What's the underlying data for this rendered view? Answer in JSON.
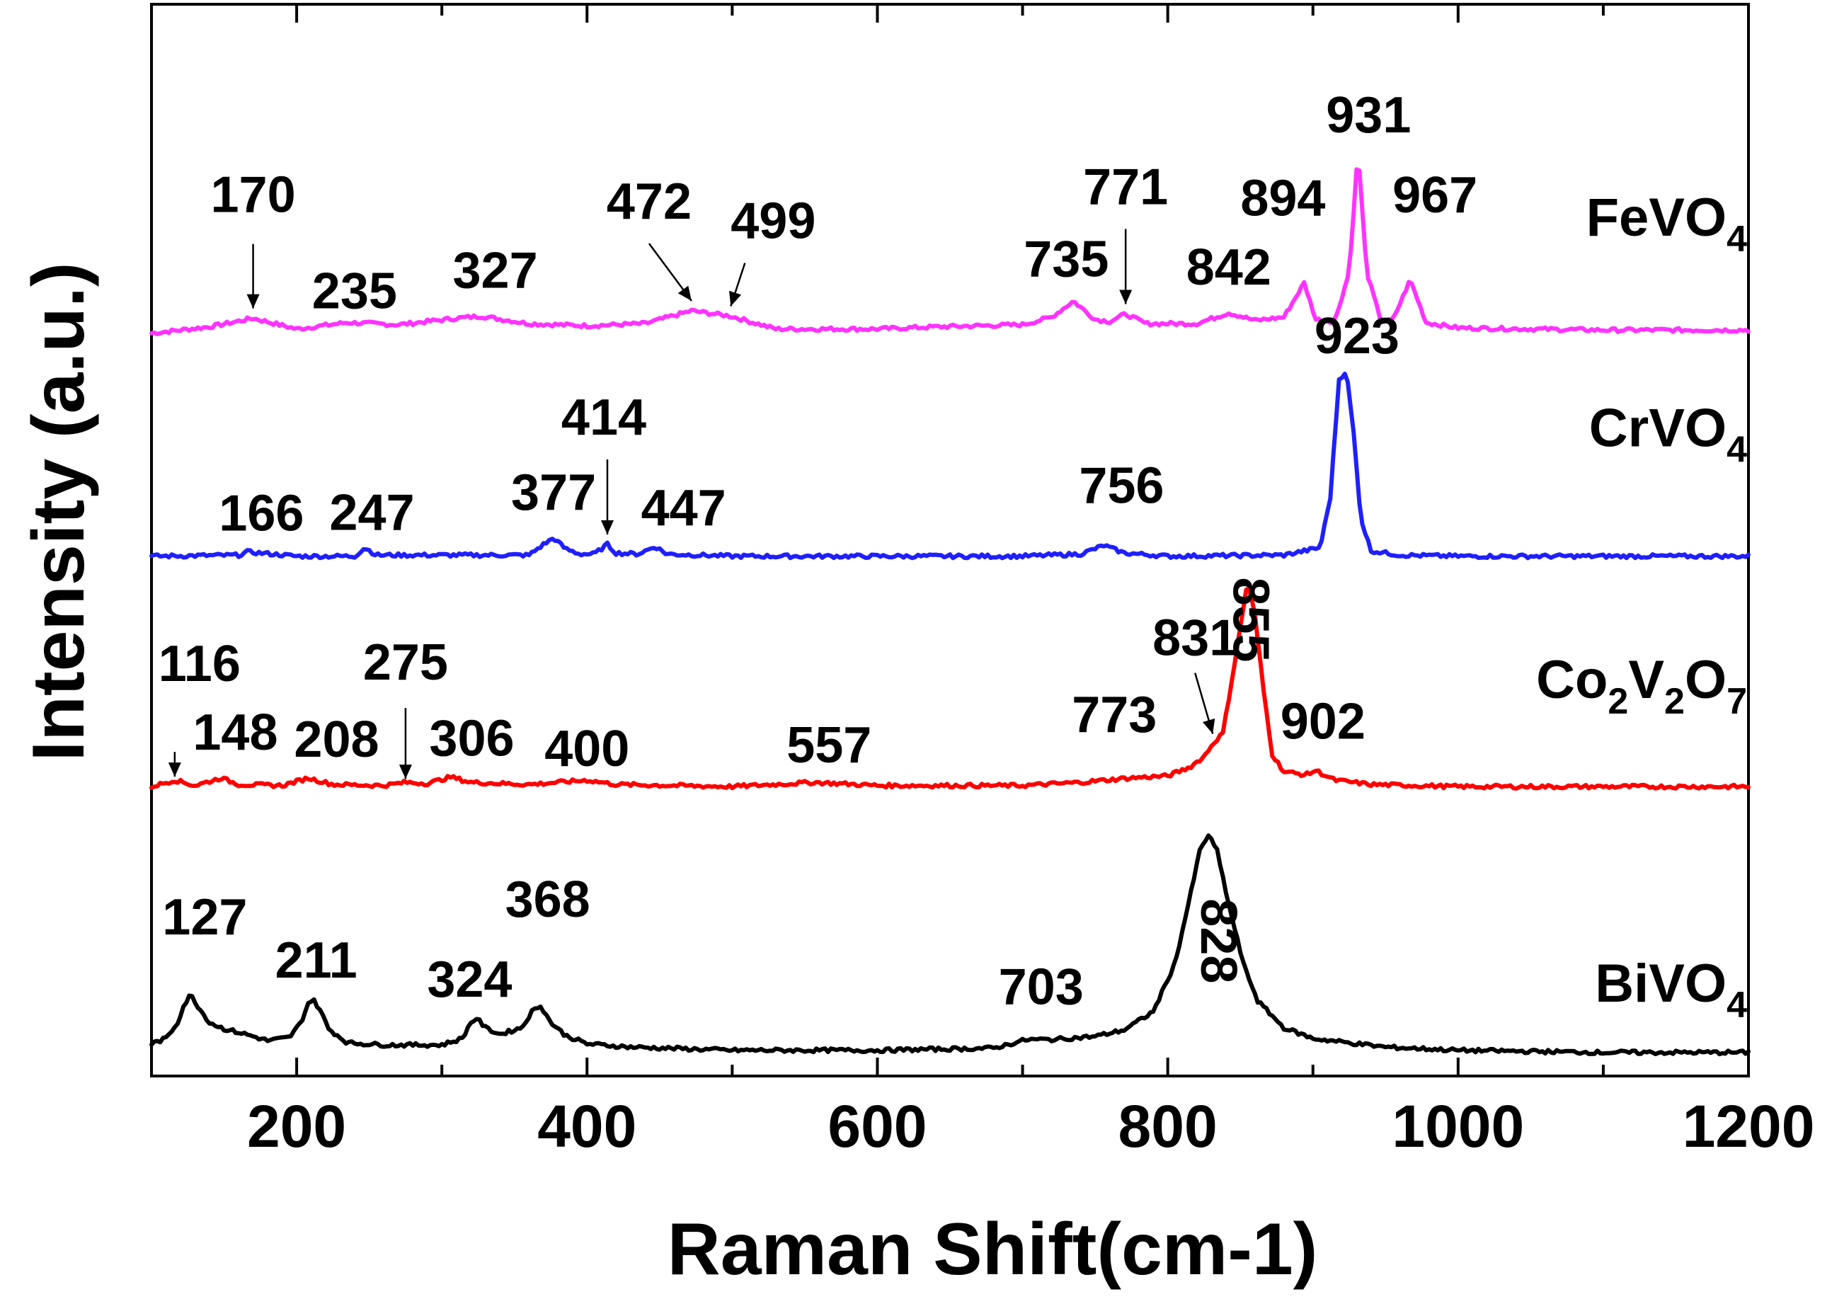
{
  "chart_data": {
    "type": "line",
    "xlabel": "Raman Shift(cm-1)",
    "ylabel": "Intensity (a.u.)",
    "xlim": [
      100,
      1200
    ],
    "ylim": [
      0,
      100
    ],
    "x_ticks": [
      200,
      400,
      600,
      800,
      1000,
      1200
    ],
    "y_ticks_shown": false,
    "grid": false,
    "series": [
      {
        "name": "FeVO",
        "subscripts": [
          "4"
        ],
        "parts": [
          [
            "FeVO",
            ""
          ],
          [
            "4",
            "sub"
          ]
        ],
        "color": "#ff33ff",
        "baseline": 69.5,
        "points": [
          [
            100,
            69.3
          ],
          [
            140,
            69.9
          ],
          [
            170,
            70.7
          ],
          [
            200,
            69.7
          ],
          [
            235,
            70.3
          ],
          [
            270,
            70.1
          ],
          [
            310,
            70.7
          ],
          [
            327,
            70.9
          ],
          [
            360,
            70.2
          ],
          [
            400,
            70.0
          ],
          [
            440,
            70.2
          ],
          [
            472,
            71.4
          ],
          [
            499,
            70.9
          ],
          [
            530,
            69.7
          ],
          [
            600,
            69.7
          ],
          [
            640,
            69.9
          ],
          [
            700,
            70.1
          ],
          [
            720,
            70.8
          ],
          [
            735,
            72.3
          ],
          [
            750,
            70.6
          ],
          [
            760,
            70.4
          ],
          [
            771,
            71.1
          ],
          [
            785,
            70.2
          ],
          [
            820,
            70.2
          ],
          [
            842,
            71.2
          ],
          [
            850,
            70.9
          ],
          [
            860,
            70.5
          ],
          [
            880,
            70.8
          ],
          [
            894,
            74.0
          ],
          [
            902,
            70.6
          ],
          [
            915,
            70.4
          ],
          [
            925,
            75.0
          ],
          [
            931,
            86.4
          ],
          [
            937,
            75.0
          ],
          [
            947,
            70.4
          ],
          [
            955,
            70.5
          ],
          [
            967,
            74.3
          ],
          [
            978,
            70.3
          ],
          [
            1000,
            69.8
          ],
          [
            1100,
            69.6
          ],
          [
            1200,
            69.6
          ]
        ],
        "peaks": [
          {
            "x": 170,
            "label": "170",
            "arrow": true
          },
          {
            "x": 235,
            "label": "235",
            "arrow": false
          },
          {
            "x": 327,
            "label": "327",
            "arrow": false
          },
          {
            "x": 472,
            "label": "472",
            "arrow": true
          },
          {
            "x": 499,
            "label": "499",
            "arrow": true
          },
          {
            "x": 735,
            "label": "735",
            "arrow": false
          },
          {
            "x": 771,
            "label": "771",
            "arrow": true
          },
          {
            "x": 842,
            "label": "842",
            "arrow": false
          },
          {
            "x": 894,
            "label": "894",
            "arrow": false
          },
          {
            "x": 931,
            "label": "931",
            "arrow": false
          },
          {
            "x": 967,
            "label": "967",
            "arrow": false
          }
        ]
      },
      {
        "name": "CrVO",
        "subscripts": [
          "4"
        ],
        "parts": [
          [
            "CrVO",
            ""
          ],
          [
            "4",
            "sub"
          ]
        ],
        "color": "#1f1fff",
        "baseline": 48.5,
        "points": [
          [
            100,
            48.5
          ],
          [
            160,
            48.6
          ],
          [
            166,
            48.9
          ],
          [
            200,
            48.5
          ],
          [
            240,
            48.5
          ],
          [
            247,
            49.3
          ],
          [
            255,
            48.6
          ],
          [
            300,
            48.6
          ],
          [
            360,
            48.6
          ],
          [
            370,
            49.6
          ],
          [
            377,
            50.2
          ],
          [
            385,
            49.2
          ],
          [
            395,
            48.7
          ],
          [
            405,
            48.7
          ],
          [
            414,
            49.6
          ],
          [
            420,
            48.8
          ],
          [
            435,
            48.7
          ],
          [
            447,
            49.4
          ],
          [
            455,
            48.7
          ],
          [
            500,
            48.5
          ],
          [
            600,
            48.5
          ],
          [
            700,
            48.5
          ],
          [
            740,
            48.7
          ],
          [
            756,
            49.5
          ],
          [
            770,
            48.8
          ],
          [
            800,
            48.5
          ],
          [
            880,
            48.6
          ],
          [
            905,
            49.3
          ],
          [
            912,
            54.0
          ],
          [
            918,
            65.0
          ],
          [
            923,
            65.8
          ],
          [
            928,
            60.0
          ],
          [
            933,
            52.0
          ],
          [
            940,
            49.0
          ],
          [
            960,
            48.6
          ],
          [
            1000,
            48.5
          ],
          [
            1100,
            48.5
          ],
          [
            1200,
            48.5
          ]
        ],
        "peaks": [
          {
            "x": 166,
            "label": "166",
            "arrow": false
          },
          {
            "x": 247,
            "label": "247",
            "arrow": false
          },
          {
            "x": 377,
            "label": "377",
            "arrow": false
          },
          {
            "x": 414,
            "label": "414",
            "arrow": true
          },
          {
            "x": 447,
            "label": "447",
            "arrow": false
          },
          {
            "x": 756,
            "label": "756",
            "arrow": false
          },
          {
            "x": 923,
            "label": "923",
            "arrow": false
          }
        ]
      },
      {
        "name": "Co",
        "subscripts": [
          "2",
          "2",
          "7"
        ],
        "parts": [
          [
            "Co",
            ""
          ],
          [
            "2",
            "sub"
          ],
          [
            "V",
            ""
          ],
          [
            "2",
            "sub"
          ],
          [
            "O",
            ""
          ],
          [
            "7",
            "sub"
          ]
        ],
        "color": "#ff0000",
        "baseline": 27.0,
        "points": [
          [
            100,
            27.0
          ],
          [
            116,
            27.6
          ],
          [
            130,
            27.1
          ],
          [
            148,
            27.8
          ],
          [
            160,
            27.2
          ],
          [
            190,
            27.1
          ],
          [
            208,
            27.8
          ],
          [
            225,
            27.2
          ],
          [
            260,
            27.1
          ],
          [
            275,
            27.4
          ],
          [
            290,
            27.3
          ],
          [
            306,
            27.9
          ],
          [
            320,
            27.4
          ],
          [
            360,
            27.2
          ],
          [
            400,
            27.6
          ],
          [
            420,
            27.2
          ],
          [
            500,
            27.0
          ],
          [
            557,
            27.4
          ],
          [
            600,
            27.1
          ],
          [
            700,
            27.1
          ],
          [
            740,
            27.4
          ],
          [
            773,
            27.8
          ],
          [
            800,
            28.0
          ],
          [
            815,
            28.8
          ],
          [
            825,
            29.8
          ],
          [
            831,
            31.0
          ],
          [
            838,
            32.0
          ],
          [
            843,
            36.0
          ],
          [
            849,
            41.0
          ],
          [
            855,
            46.2
          ],
          [
            860,
            43.0
          ],
          [
            866,
            36.0
          ],
          [
            872,
            30.0
          ],
          [
            880,
            28.4
          ],
          [
            895,
            28.1
          ],
          [
            902,
            28.5
          ],
          [
            915,
            27.6
          ],
          [
            940,
            27.2
          ],
          [
            1000,
            27.0
          ],
          [
            1100,
            27.0
          ],
          [
            1200,
            27.0
          ]
        ],
        "peaks": [
          {
            "x": 116,
            "label": "116",
            "arrow": true
          },
          {
            "x": 148,
            "label": "148",
            "arrow": false
          },
          {
            "x": 208,
            "label": "208",
            "arrow": false
          },
          {
            "x": 275,
            "label": "275",
            "arrow": true
          },
          {
            "x": 306,
            "label": "306",
            "arrow": false
          },
          {
            "x": 400,
            "label": "400",
            "arrow": false
          },
          {
            "x": 557,
            "label": "557",
            "arrow": false
          },
          {
            "x": 773,
            "label": "773",
            "arrow": false
          },
          {
            "x": 831,
            "label": "831",
            "arrow": true
          },
          {
            "x": 855,
            "label": "855",
            "arrow": false
          },
          {
            "x": 902,
            "label": "902",
            "arrow": false
          }
        ]
      },
      {
        "name": "BiVO",
        "subscripts": [
          "4"
        ],
        "parts": [
          [
            "BiVO",
            ""
          ],
          [
            "4",
            "sub"
          ]
        ],
        "color": "#000000",
        "baseline": 2.3,
        "points": [
          [
            100,
            3.0
          ],
          [
            110,
            3.5
          ],
          [
            118,
            5.0
          ],
          [
            122,
            6.5
          ],
          [
            127,
            7.6
          ],
          [
            133,
            6.3
          ],
          [
            140,
            5.0
          ],
          [
            150,
            4.4
          ],
          [
            165,
            3.9
          ],
          [
            180,
            3.3
          ],
          [
            195,
            3.6
          ],
          [
            203,
            5.0
          ],
          [
            208,
            6.8
          ],
          [
            211,
            7.2
          ],
          [
            216,
            6.2
          ],
          [
            222,
            4.4
          ],
          [
            235,
            3.1
          ],
          [
            260,
            2.9
          ],
          [
            300,
            2.9
          ],
          [
            314,
            3.5
          ],
          [
            320,
            5.0
          ],
          [
            324,
            5.4
          ],
          [
            330,
            4.5
          ],
          [
            340,
            3.9
          ],
          [
            355,
            4.5
          ],
          [
            362,
            6.0
          ],
          [
            368,
            6.6
          ],
          [
            375,
            5.0
          ],
          [
            385,
            3.8
          ],
          [
            400,
            3.0
          ],
          [
            430,
            2.7
          ],
          [
            500,
            2.4
          ],
          [
            600,
            2.4
          ],
          [
            680,
            2.6
          ],
          [
            703,
            3.4
          ],
          [
            720,
            3.4
          ],
          [
            750,
            3.7
          ],
          [
            770,
            4.3
          ],
          [
            790,
            6.0
          ],
          [
            805,
            10.5
          ],
          [
            815,
            16.5
          ],
          [
            822,
            21.0
          ],
          [
            828,
            22.5
          ],
          [
            834,
            21.0
          ],
          [
            842,
            16.0
          ],
          [
            852,
            10.5
          ],
          [
            862,
            7.0
          ],
          [
            880,
            4.5
          ],
          [
            900,
            3.5
          ],
          [
            950,
            2.7
          ],
          [
            1000,
            2.4
          ],
          [
            1100,
            2.2
          ],
          [
            1200,
            2.2
          ]
        ],
        "peaks": [
          {
            "x": 127,
            "label": "127",
            "arrow": false
          },
          {
            "x": 211,
            "label": "211",
            "arrow": false
          },
          {
            "x": 324,
            "label": "324",
            "arrow": false
          },
          {
            "x": 368,
            "label": "368",
            "arrow": false
          },
          {
            "x": 703,
            "label": "703",
            "arrow": false
          },
          {
            "x": 828,
            "label": "828",
            "arrow": false
          }
        ]
      }
    ]
  }
}
